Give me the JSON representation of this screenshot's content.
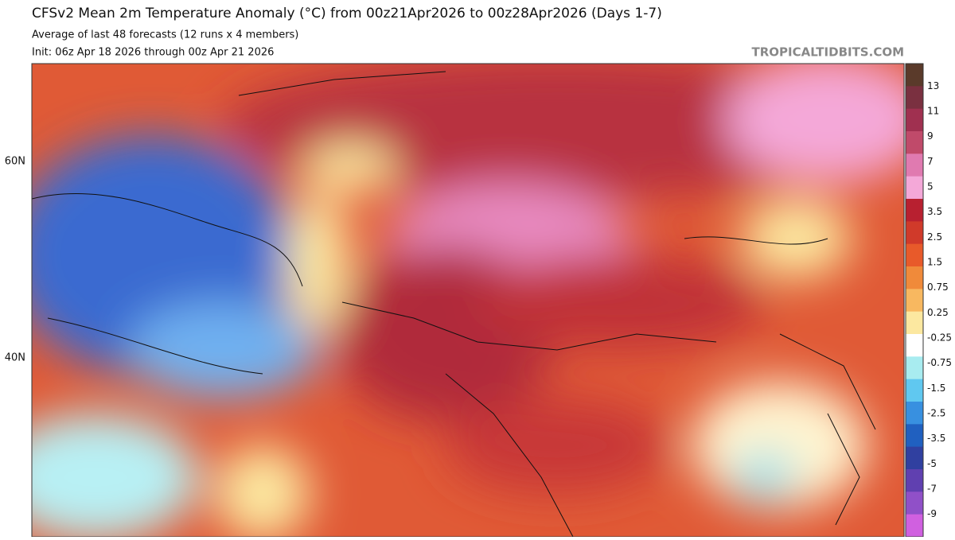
{
  "header": {
    "title": "CFSv2 Mean 2m Temperature Anomaly (°C) from 00z21Apr2026 to 00z28Apr2026 (Days 1-7)",
    "subtitle": "Average of last 48 forecasts (12 runs x 4 members)",
    "init": "Init: 06z Apr 18 2026 through 00z Apr 21 2026",
    "watermark": "TROPICALTIDBITS.COM"
  },
  "map": {
    "lat_labels": [
      "60N",
      "40N"
    ]
  },
  "colorbar": {
    "labels": [
      "13",
      "11",
      "9",
      "7",
      "5",
      "3.5",
      "2.5",
      "1.5",
      "0.75",
      "0.25",
      "-0.25",
      "-0.75",
      "-1.5",
      "-2.5",
      "-3.5",
      "-5",
      "-7",
      "-9"
    ],
    "colors": [
      "#5a3a2a",
      "#7a3040",
      "#a03050",
      "#c04a6a",
      "#e07ab0",
      "#f4a8d8",
      "#b82030",
      "#d03a2a",
      "#e85a2a",
      "#f08a3a",
      "#f8b860",
      "#fce8a0",
      "#ffffff",
      "#a8ecf0",
      "#60c8f0",
      "#3890e0",
      "#2060c0",
      "#3040a0",
      "#6040b0",
      "#9050c8",
      "#d060e0"
    ]
  }
}
